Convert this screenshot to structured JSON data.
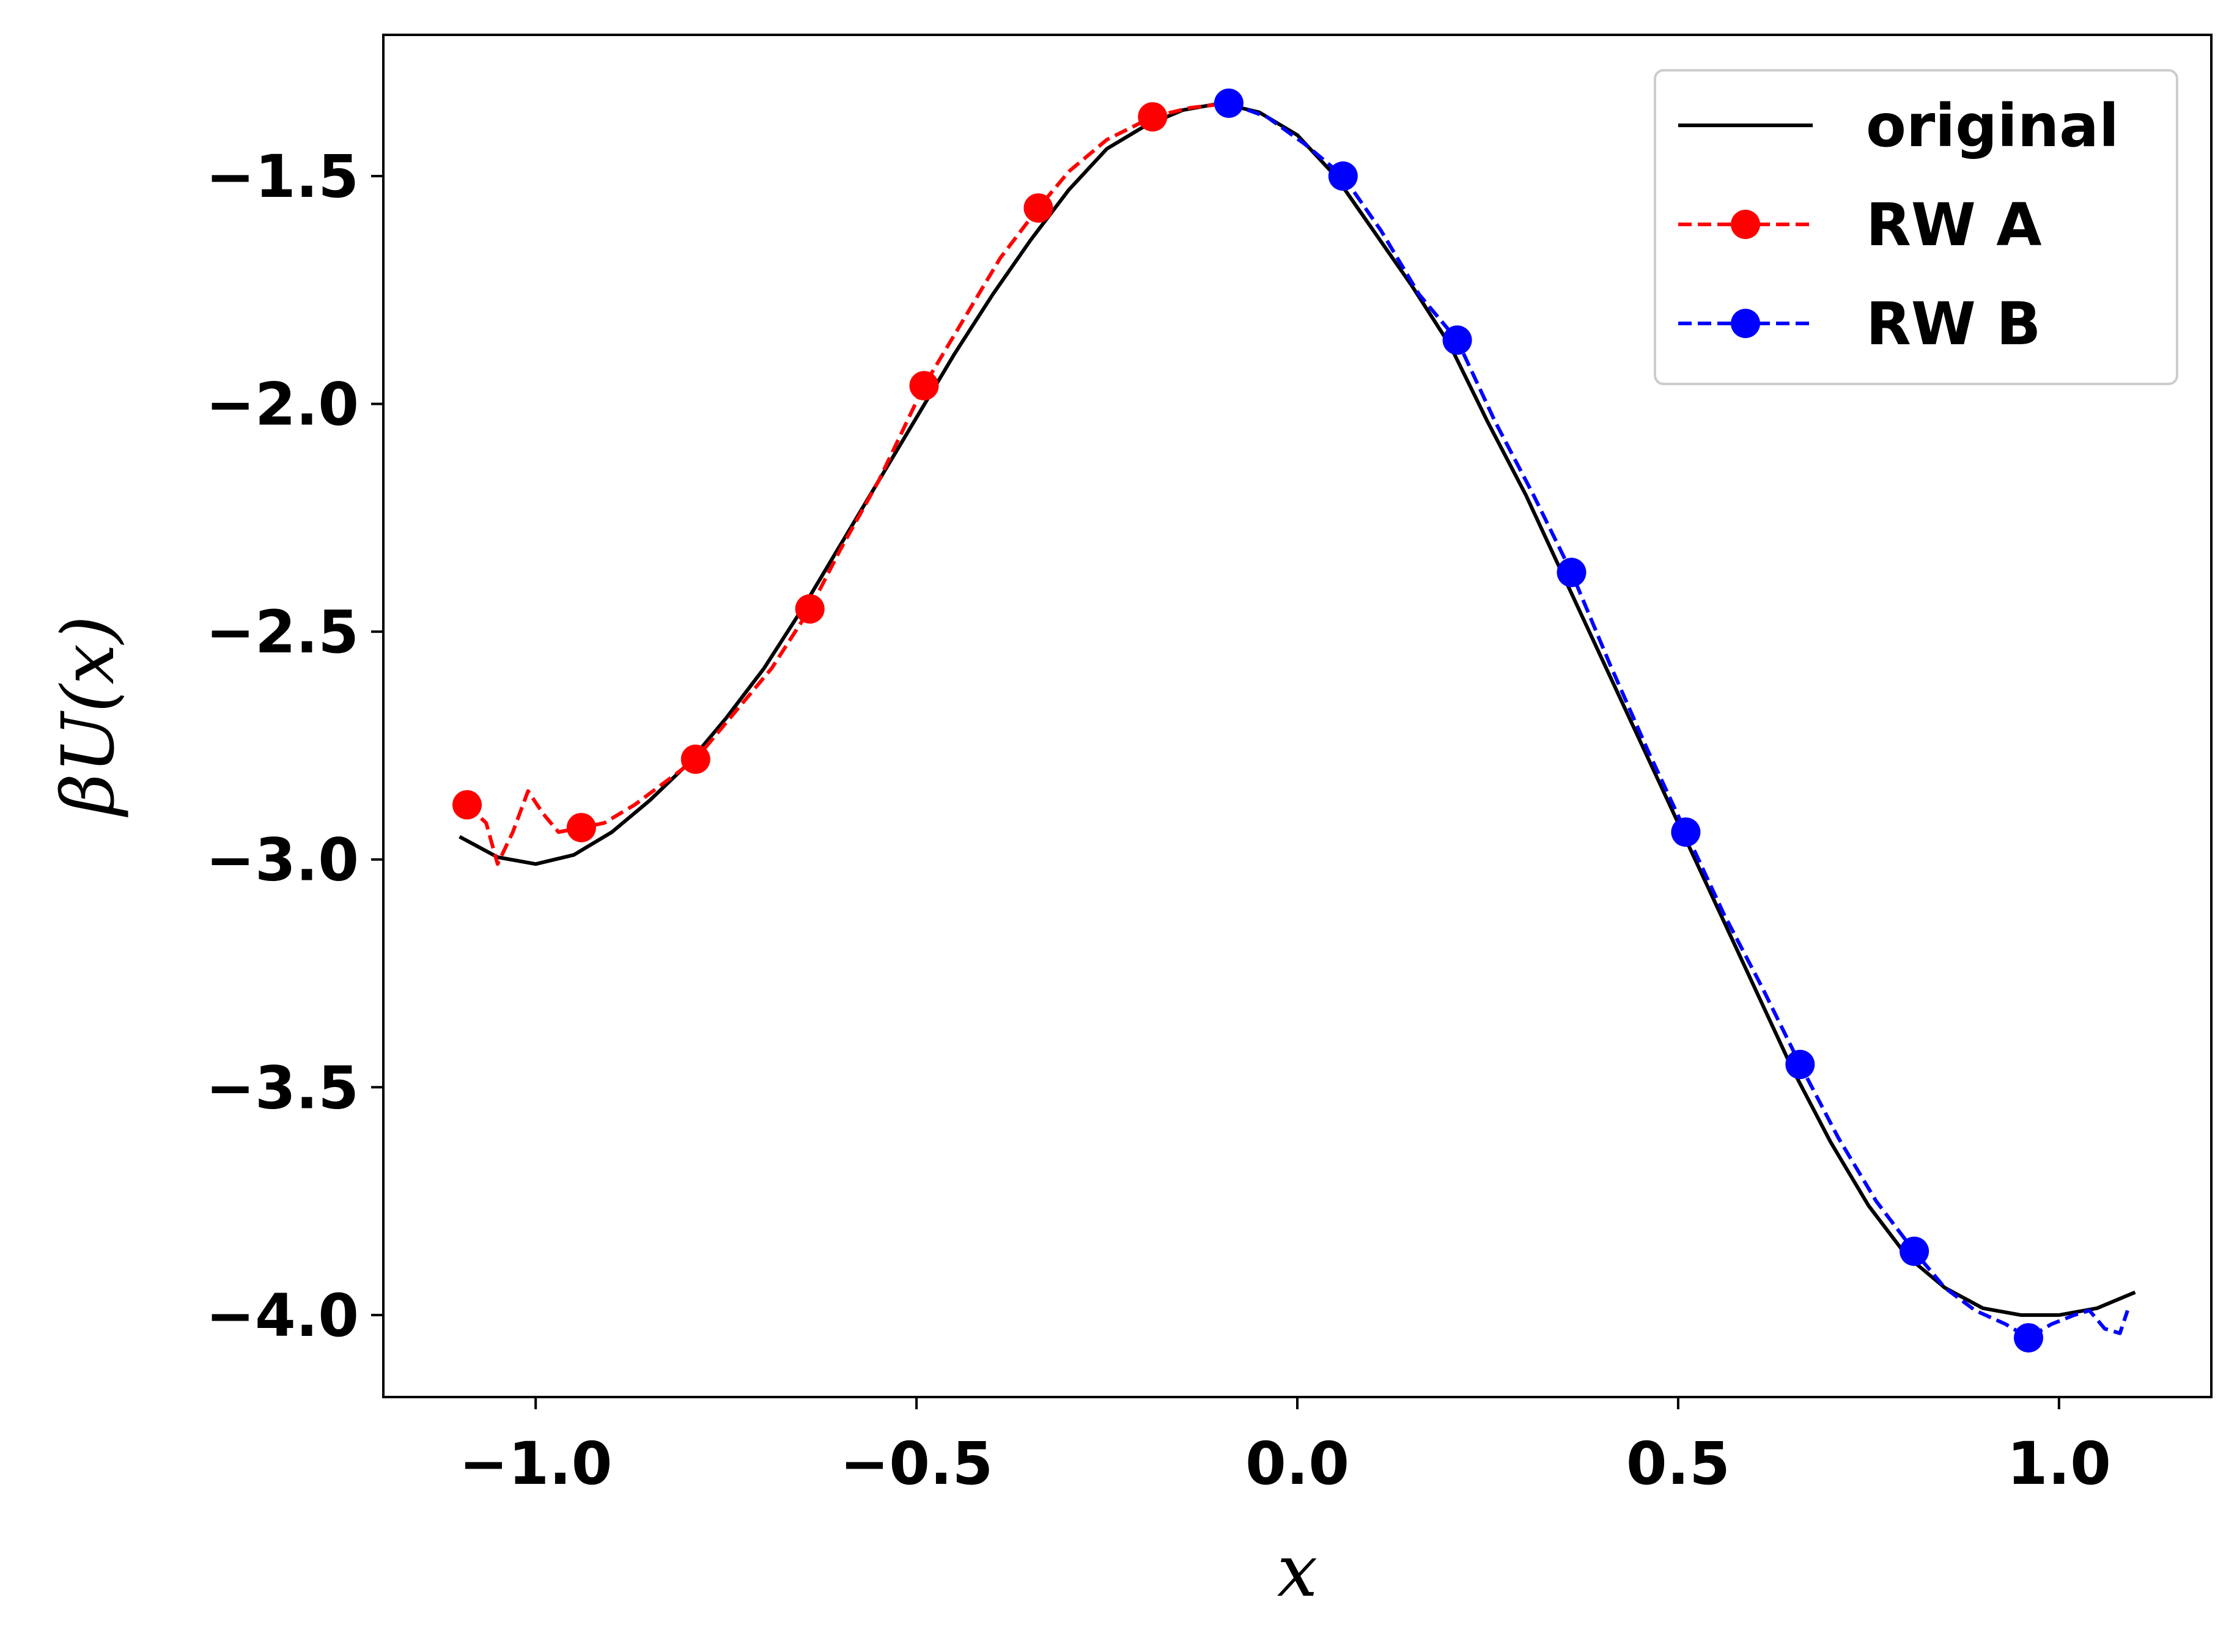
{
  "chart_data": {
    "type": "line",
    "title": "",
    "xlabel": "x",
    "ylabel": "βU(x)",
    "xlim": [
      -1.2,
      1.2
    ],
    "ylim": [
      -4.18,
      -1.19
    ],
    "xticks": [
      -1.0,
      -0.5,
      0.0,
      0.5,
      1.0
    ],
    "xtick_labels": [
      "−1.0",
      "−0.5",
      "0.0",
      "0.5",
      "1.0"
    ],
    "yticks": [
      -1.5,
      -2.0,
      -2.5,
      -3.0,
      -3.5,
      -4.0
    ],
    "ytick_labels": [
      "−1.5",
      "−2.0",
      "−2.5",
      "−3.0",
      "−3.5",
      "−4.0"
    ],
    "grid": false,
    "legend_position": "top-right",
    "series": [
      {
        "name": "original",
        "color": "#000000",
        "style": "solid",
        "marker": "none",
        "x": [
          -1.1,
          -1.05,
          -1.0,
          -0.95,
          -0.9,
          -0.85,
          -0.8,
          -0.75,
          -0.7,
          -0.65,
          -0.6,
          -0.55,
          -0.5,
          -0.45,
          -0.4,
          -0.35,
          -0.3,
          -0.25,
          -0.2,
          -0.15,
          -0.1,
          -0.05,
          0.0,
          0.05,
          0.1,
          0.15,
          0.2,
          0.25,
          0.3,
          0.35,
          0.4,
          0.45,
          0.5,
          0.55,
          0.6,
          0.65,
          0.7,
          0.75,
          0.8,
          0.85,
          0.9,
          0.95,
          1.0,
          1.05,
          1.1
        ],
        "y": [
          -2.95,
          -2.995,
          -3.01,
          -2.99,
          -2.94,
          -2.87,
          -2.79,
          -2.69,
          -2.58,
          -2.45,
          -2.31,
          -2.17,
          -2.03,
          -1.89,
          -1.76,
          -1.64,
          -1.53,
          -1.44,
          -1.39,
          -1.355,
          -1.34,
          -1.36,
          -1.41,
          -1.5,
          -1.62,
          -1.74,
          -1.87,
          -2.04,
          -2.2,
          -2.38,
          -2.56,
          -2.74,
          -2.92,
          -3.1,
          -3.28,
          -3.46,
          -3.62,
          -3.76,
          -3.87,
          -3.94,
          -3.985,
          -4.0,
          -4.0,
          -3.985,
          -3.95
        ]
      },
      {
        "name": "RW A",
        "color": "#ff0000",
        "style": "dashed",
        "marker": "circle",
        "x": [
          -1.09,
          -1.065,
          -1.05,
          -1.03,
          -1.01,
          -0.99,
          -0.97,
          -0.94,
          -0.91,
          -0.87,
          -0.83,
          -0.79,
          -0.74,
          -0.69,
          -0.64,
          -0.6,
          -0.55,
          -0.49,
          -0.44,
          -0.39,
          -0.34,
          -0.3,
          -0.25,
          -0.19,
          -0.14,
          -0.09
        ],
        "y": [
          -2.88,
          -2.92,
          -3.01,
          -2.94,
          -2.85,
          -2.9,
          -2.94,
          -2.93,
          -2.92,
          -2.88,
          -2.83,
          -2.78,
          -2.68,
          -2.58,
          -2.45,
          -2.32,
          -2.17,
          -1.96,
          -1.82,
          -1.68,
          -1.57,
          -1.49,
          -1.42,
          -1.37,
          -1.35,
          -1.34
        ],
        "marker_points": [
          [
            -1.09,
            -2.88
          ],
          [
            -0.94,
            -2.93
          ],
          [
            -0.79,
            -2.78
          ],
          [
            -0.64,
            -2.45
          ],
          [
            -0.49,
            -1.96
          ],
          [
            -0.34,
            -1.57
          ],
          [
            -0.19,
            -1.37
          ]
        ]
      },
      {
        "name": "RW B",
        "color": "#0000ff",
        "style": "dashed",
        "marker": "circle",
        "x": [
          -0.09,
          -0.04,
          0.01,
          0.06,
          0.11,
          0.16,
          0.21,
          0.26,
          0.31,
          0.36,
          0.41,
          0.46,
          0.51,
          0.56,
          0.61,
          0.66,
          0.71,
          0.76,
          0.81,
          0.85,
          0.89,
          0.93,
          0.96,
          0.99,
          1.02,
          1.04,
          1.06,
          1.08,
          1.09
        ],
        "y": [
          -1.34,
          -1.37,
          -1.43,
          -1.5,
          -1.62,
          -1.76,
          -1.86,
          -2.04,
          -2.2,
          -2.37,
          -2.57,
          -2.76,
          -2.94,
          -3.12,
          -3.28,
          -3.45,
          -3.61,
          -3.75,
          -3.86,
          -3.94,
          -3.99,
          -4.02,
          -4.05,
          -4.02,
          -4.0,
          -3.99,
          -4.03,
          -4.04,
          -3.99
        ],
        "marker_points": [
          [
            -0.09,
            -1.34
          ],
          [
            0.06,
            -1.5
          ],
          [
            0.21,
            -1.86
          ],
          [
            0.36,
            -2.37
          ],
          [
            0.51,
            -2.94
          ],
          [
            0.66,
            -3.45
          ],
          [
            0.81,
            -3.86
          ],
          [
            0.96,
            -4.05
          ]
        ]
      }
    ]
  }
}
